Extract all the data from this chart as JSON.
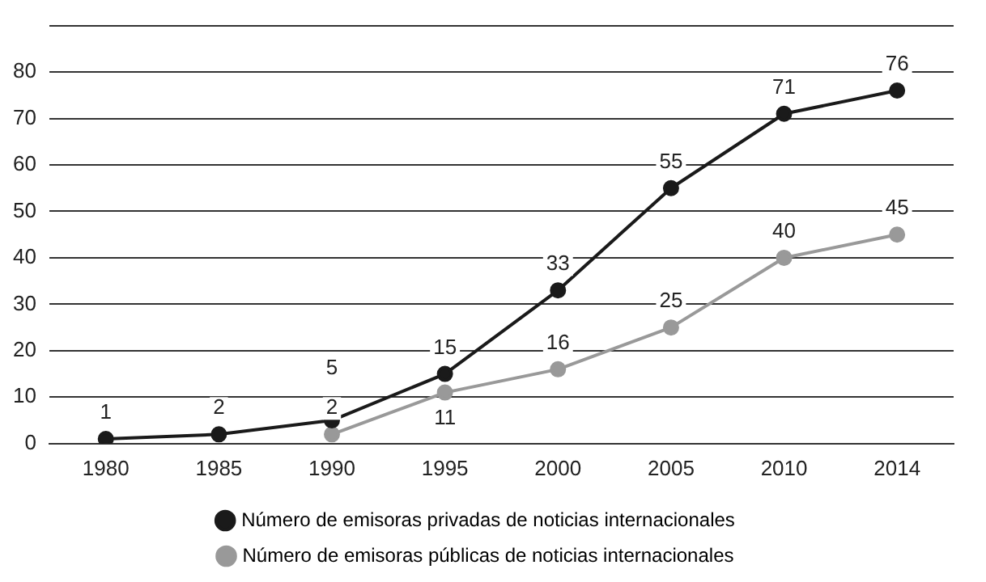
{
  "chart_data": {
    "type": "line",
    "categories": [
      "1980",
      "1985",
      "1990",
      "1995",
      "2000",
      "2005",
      "2010",
      "2014"
    ],
    "series": [
      {
        "name": "Número de emisoras privadas de noticias internacionales",
        "color": "#1a1a1a",
        "values": [
          1,
          2,
          5,
          15,
          33,
          55,
          71,
          76
        ]
      },
      {
        "name": "Número de emisoras públicas de noticias internacionales",
        "color": "#999999",
        "values": [
          null,
          null,
          2,
          11,
          16,
          25,
          40,
          45
        ]
      }
    ],
    "ylim": [
      0,
      90
    ],
    "yticks": [
      0,
      10,
      20,
      30,
      40,
      50,
      60,
      70,
      80,
      {
        "value": 90,
        "label": null
      }
    ],
    "grid": "y",
    "legend": "bottom",
    "marker": "circle",
    "line_style": "solid",
    "data_labels": true
  }
}
